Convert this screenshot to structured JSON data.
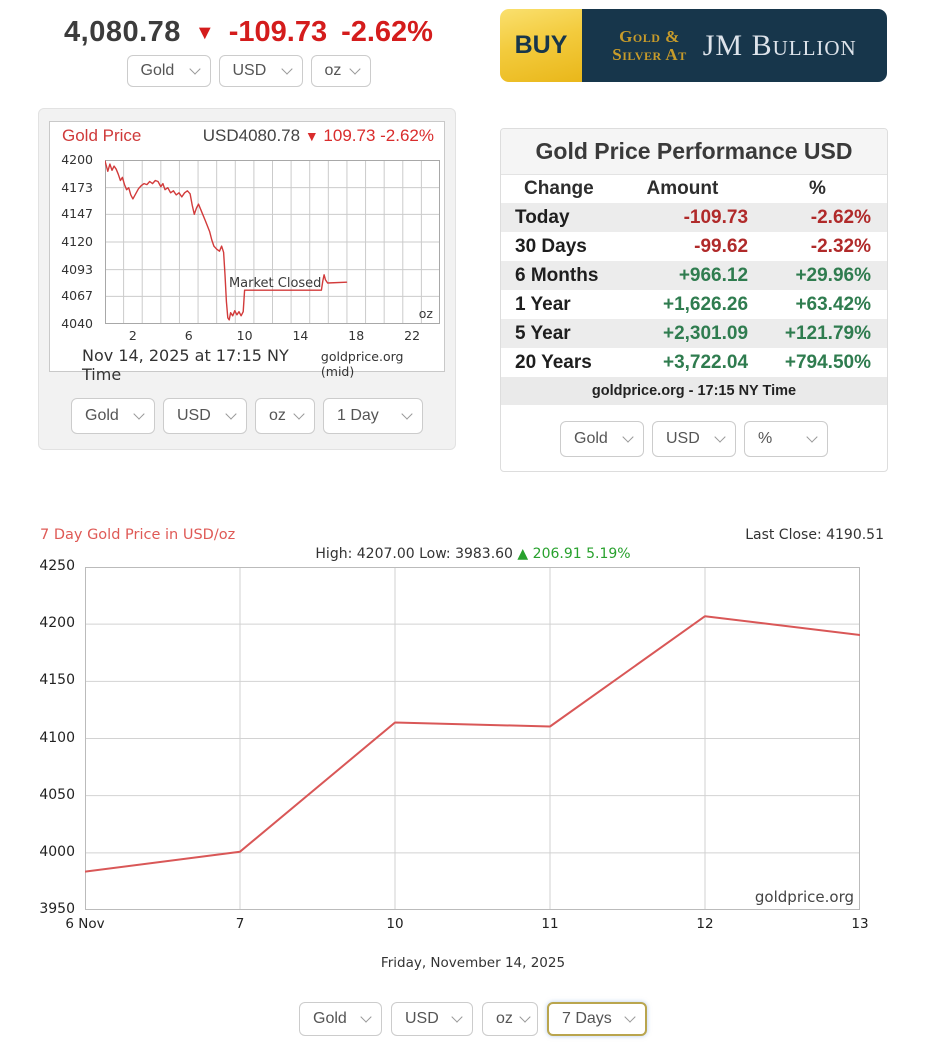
{
  "header": {
    "price": "4,080.78",
    "down_triangle": "▼",
    "change_amount": "-109.73",
    "change_percent": "-2.62%",
    "selectors": {
      "metal": "Gold",
      "currency": "USD",
      "unit": "oz"
    },
    "banner": {
      "buy": "BUY",
      "tagline_line1": "Gold &",
      "tagline_line2": "Silver At",
      "brand": "JM Bullion"
    }
  },
  "intraday": {
    "title": "Gold Price",
    "quote_price": "USD4080.78",
    "down_triangle": "▼",
    "quote_change": "109.73 -2.62%",
    "market_status": "Market Closed",
    "unit_label": "oz",
    "footer_left": "Nov 14, 2025 at 17:15 NY Time",
    "footer_right": "goldprice.org (mid)",
    "selectors": {
      "metal": "Gold",
      "currency": "USD",
      "unit": "oz",
      "period": "1 Day"
    }
  },
  "performance": {
    "title": "Gold Price Performance USD",
    "columns": {
      "change": "Change",
      "amount": "Amount",
      "percent": "%"
    },
    "rows": [
      {
        "label": "Today",
        "amount": "-109.73",
        "percent": "-2.62%",
        "direction": "down"
      },
      {
        "label": "30 Days",
        "amount": "-99.62",
        "percent": "-2.32%",
        "direction": "down"
      },
      {
        "label": "6 Months",
        "amount": "+966.12",
        "percent": "+29.96%",
        "direction": "up"
      },
      {
        "label": "1 Year",
        "amount": "+1,626.26",
        "percent": "+63.42%",
        "direction": "up"
      },
      {
        "label": "5 Year",
        "amount": "+2,301.09",
        "percent": "+121.79%",
        "direction": "up"
      },
      {
        "label": "20 Years",
        "amount": "+3,722.04",
        "percent": "+794.50%",
        "direction": "up"
      }
    ],
    "footer": "goldprice.org - 17:15 NY Time",
    "selectors": {
      "metal": "Gold",
      "currency": "USD",
      "unit": "%"
    }
  },
  "weekly": {
    "title": "7 Day Gold Price in USD/oz",
    "last_close": "Last Close: 4190.51",
    "high_low": "High: 4207.00 Low: 3983.60",
    "gain_icon": "▲",
    "gain": "206.91 5.19%",
    "watermark": "goldprice.org",
    "date_caption": "Friday, November 14, 2025",
    "selectors": {
      "metal": "Gold",
      "currency": "USD",
      "unit": "oz",
      "period": "7 Days"
    }
  },
  "colors": {
    "red_text": "#d41c1c",
    "line_red_intraday": "#d23b3b",
    "line_red_weekly": "#d95757",
    "green_text": "#28a12d",
    "table_green": "#2f7c4f",
    "table_red": "#b02a2a",
    "banner_navy": "#17364b",
    "banner_gold": "#e9b71a"
  },
  "chart_data": [
    {
      "type": "line",
      "title": "Gold Price (1 Day, USD/oz)",
      "x_unit": "hour, NY Time",
      "x_range": [
        0,
        24
      ],
      "x_ticks": [
        2,
        6,
        10,
        14,
        18,
        22
      ],
      "y_range": [
        4040,
        4200
      ],
      "y_ticks": [
        4200,
        4173,
        4147,
        4120,
        4093,
        4067,
        4040
      ],
      "annotations": [
        "Market Closed",
        "oz"
      ],
      "points": [
        [
          0,
          4199
        ],
        [
          0.2,
          4189
        ],
        [
          0.35,
          4196
        ],
        [
          0.5,
          4190
        ],
        [
          0.65,
          4194
        ],
        [
          0.8,
          4191
        ],
        [
          0.95,
          4186
        ],
        [
          1.1,
          4180
        ],
        [
          1.25,
          4183
        ],
        [
          1.4,
          4176
        ],
        [
          1.55,
          4171
        ],
        [
          1.7,
          4173
        ],
        [
          1.85,
          4166
        ],
        [
          2.0,
          4162
        ],
        [
          2.2,
          4167
        ],
        [
          2.4,
          4172
        ],
        [
          2.6,
          4175
        ],
        [
          2.8,
          4177
        ],
        [
          3.0,
          4176
        ],
        [
          3.2,
          4179
        ],
        [
          3.4,
          4177
        ],
        [
          3.6,
          4180
        ],
        [
          3.8,
          4179
        ],
        [
          4.0,
          4174
        ],
        [
          4.15,
          4177
        ],
        [
          4.3,
          4171
        ],
        [
          4.5,
          4173
        ],
        [
          4.7,
          4168
        ],
        [
          4.9,
          4170
        ],
        [
          5.1,
          4166
        ],
        [
          5.3,
          4168
        ],
        [
          5.5,
          4164
        ],
        [
          5.7,
          4168
        ],
        [
          5.9,
          4170
        ],
        [
          6.1,
          4167
        ],
        [
          6.25,
          4156
        ],
        [
          6.4,
          4147
        ],
        [
          6.55,
          4153
        ],
        [
          6.7,
          4157
        ],
        [
          6.85,
          4152
        ],
        [
          7.0,
          4147
        ],
        [
          7.15,
          4142
        ],
        [
          7.3,
          4137
        ],
        [
          7.5,
          4130
        ],
        [
          7.65,
          4122
        ],
        [
          7.8,
          4116
        ],
        [
          8.0,
          4113
        ],
        [
          8.2,
          4111
        ],
        [
          8.35,
          4116
        ],
        [
          8.5,
          4110
        ],
        [
          8.6,
          4088
        ],
        [
          8.7,
          4062
        ],
        [
          8.8,
          4046
        ],
        [
          8.9,
          4044
        ],
        [
          9.0,
          4051
        ],
        [
          9.15,
          4048
        ],
        [
          9.3,
          4053
        ],
        [
          9.45,
          4049
        ],
        [
          9.6,
          4052
        ],
        [
          9.75,
          4048
        ],
        [
          9.9,
          4052
        ],
        [
          10.0,
          4073
        ],
        [
          15.5,
          4073
        ],
        [
          15.6,
          4082
        ],
        [
          15.7,
          4088
        ],
        [
          15.8,
          4083
        ],
        [
          15.95,
          4080
        ],
        [
          17.3,
          4080.8
        ]
      ]
    },
    {
      "type": "line",
      "title": "7 Day Gold Price in USD/oz",
      "categories": [
        "6 Nov",
        "7",
        "10",
        "11",
        "12",
        "13"
      ],
      "values": [
        3983.6,
        4001.0,
        4114.0,
        4110.5,
        4207.0,
        4190.51
      ],
      "y_ticks": [
        4250,
        4200,
        4150,
        4100,
        4050,
        4000,
        3950
      ],
      "ylim": [
        3950,
        4250
      ],
      "high": 4207.0,
      "low": 3983.6,
      "change": 206.91,
      "change_percent": 5.19,
      "last_close": 4190.51
    }
  ]
}
